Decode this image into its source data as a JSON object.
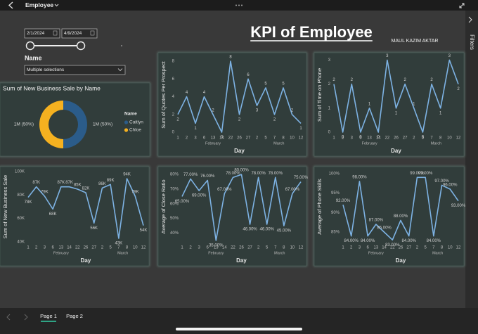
{
  "app": {
    "page_title": "Employee",
    "filters_label": "Filters",
    "pages": [
      "Page 1",
      "Page 2"
    ]
  },
  "header": {
    "title": "KPI of Employee",
    "author": "MAUL KAZIM AKTAR"
  },
  "slicers": {
    "start_date": "2/1/2024",
    "end_date": "4/9/2024",
    "name_label": "Name",
    "name_selection": "Multiple selections"
  },
  "chart_data": [
    {
      "type": "donut",
      "title": "Sum of New Business Sale by Name",
      "legend_title": "Name",
      "categories": [
        "Caitlyn",
        "Chloe"
      ],
      "values": [
        1000000,
        1000000
      ],
      "value_labels": [
        "1M (50%)",
        "1M (50%)"
      ],
      "colors": [
        "#2b5c8a",
        "#f5b120"
      ]
    },
    {
      "type": "line",
      "x_label": "Day",
      "y_label": "Sum of Quotes Per Prospect",
      "categories": [
        "1",
        "2",
        "3",
        "6",
        "13",
        "14",
        "22",
        "26",
        "27",
        "2",
        "5",
        "7",
        "8",
        "10",
        "12"
      ],
      "x_groups": [
        "February",
        "March"
      ],
      "values": [
        2,
        4,
        1,
        4,
        2,
        0,
        8,
        2,
        6,
        3,
        5,
        2,
        5,
        2,
        1
      ],
      "color": "#7db2e3",
      "ylim": [
        0,
        8.4
      ],
      "yticks": [
        0,
        2,
        4,
        6,
        8
      ]
    },
    {
      "type": "line",
      "x_label": "Day",
      "y_label": "Sum of Time on Phone",
      "categories": [
        "1",
        "2",
        "3",
        "6",
        "13",
        "14",
        "22",
        "26",
        "27",
        "2",
        "5",
        "7",
        "8",
        "10",
        "12"
      ],
      "x_groups": [
        "February",
        "March"
      ],
      "values": [
        2,
        0,
        2,
        0,
        1,
        0,
        3,
        1,
        2,
        1,
        0,
        2,
        1,
        3,
        2
      ],
      "color": "#7db2e3",
      "ylim": [
        0,
        3.1
      ],
      "yticks": [
        0,
        1,
        2,
        3
      ]
    },
    {
      "type": "line",
      "x_label": "Day",
      "y_label": "Sum of New Business Sale",
      "categories": [
        "1",
        "2",
        "3",
        "6",
        "13",
        "14",
        "22",
        "26",
        "27",
        "2",
        "5",
        "7",
        "8",
        "10",
        "12"
      ],
      "x_groups": [
        "February",
        "March"
      ],
      "values": [
        78000,
        87000,
        79000,
        68000,
        87000,
        87000,
        85000,
        82000,
        56000,
        86000,
        89000,
        43000,
        94000,
        79000,
        54000
      ],
      "value_labels": [
        "78K",
        "87K",
        "79K",
        "68K",
        "87K",
        "87K",
        "85K",
        "82K",
        "56K",
        "86K",
        "89K",
        "43K",
        "94K",
        "79K",
        "54K"
      ],
      "color": "#7db2e3",
      "ylim": [
        40000,
        100000
      ],
      "yticks": [
        {
          "value": 40000,
          "label": "40K"
        },
        {
          "value": 60000,
          "label": "60K"
        },
        {
          "value": 80000,
          "label": "80K"
        },
        {
          "value": 100000,
          "label": "100K"
        }
      ]
    },
    {
      "type": "line",
      "x_label": "Day",
      "y_label": "Average of Close Ratio",
      "categories": [
        "1",
        "2",
        "3",
        "6",
        "13",
        "14",
        "22",
        "26",
        "27",
        "2",
        "5",
        "7",
        "8",
        "10",
        "12"
      ],
      "x_groups": [
        "February",
        "March"
      ],
      "values": [
        65,
        77,
        69,
        76,
        35,
        67,
        78,
        80,
        46,
        78,
        46,
        78,
        45,
        67,
        75
      ],
      "value_labels": [
        "65.00%",
        "77.00%",
        "69.00%",
        "76.00%",
        "35.00%",
        "67.00%",
        "78.00%",
        "80.00%",
        "46.00%",
        "78.00%",
        "46.00%",
        "78.00%",
        "45.00%",
        "67.00%",
        "75.00%"
      ],
      "color": "#7db2e3",
      "ylim": [
        34,
        82
      ],
      "yticks": [
        {
          "value": 40,
          "label": "40%"
        },
        {
          "value": 50,
          "label": "50%"
        },
        {
          "value": 60,
          "label": "60%"
        },
        {
          "value": 70,
          "label": "70%"
        },
        {
          "value": 80,
          "label": "80%"
        }
      ]
    },
    {
      "type": "line",
      "x_label": "Day",
      "y_label": "Average of Phone Skills",
      "categories": [
        "1",
        "2",
        "3",
        "6",
        "13",
        "14",
        "22",
        "26",
        "27",
        "2",
        "5",
        "7",
        "8",
        "10",
        "12"
      ],
      "x_groups": [
        "February",
        "March"
      ],
      "values": [
        92,
        84,
        98,
        84,
        87,
        85,
        83,
        88,
        84,
        99,
        99,
        84,
        97,
        96,
        93
      ],
      "value_labels": [
        "92.00%",
        "84.00%",
        "98.00%",
        "84.00%",
        "87.00%",
        "85.00%",
        "83.00%",
        "88.00%",
        "84.00%",
        "99.00%",
        "99.00%",
        "84.00%",
        "97.00%",
        "96.00%",
        "93.00%"
      ],
      "color": "#7db2e3",
      "ylim": [
        82.5,
        100.5
      ],
      "yticks": [
        {
          "value": 85,
          "label": "85%"
        },
        {
          "value": 90,
          "label": "90%"
        },
        {
          "value": 95,
          "label": "95%"
        },
        {
          "value": 100,
          "label": "100%"
        }
      ]
    }
  ]
}
